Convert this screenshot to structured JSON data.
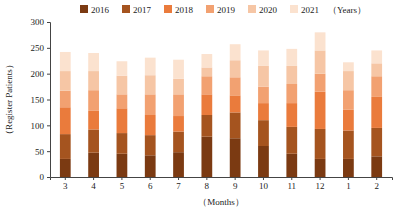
{
  "chart_data": {
    "type": "bar",
    "stacked": true,
    "y_label": "（Register Patients）",
    "x_label": "（Months）",
    "legend_title": "（Years）",
    "legend": "top",
    "grid": false,
    "categories": [
      "3",
      "4",
      "5",
      "6",
      "7",
      "8",
      "9",
      "10",
      "11",
      "12",
      "1",
      "2"
    ],
    "ylim": [
      0,
      300
    ],
    "yticks": [
      0,
      50,
      100,
      150,
      200,
      250,
      300
    ],
    "series": [
      {
        "name": "2016",
        "color": "#7b3a12",
        "values": [
          35,
          47,
          45,
          42,
          48,
          78,
          75,
          60,
          45,
          35,
          35,
          40
        ]
      },
      {
        "name": "2017",
        "color": "#a5541f",
        "values": [
          48,
          45,
          40,
          39,
          40,
          42,
          50,
          50,
          52,
          58,
          55,
          55
        ]
      },
      {
        "name": "2018",
        "color": "#ea7b3c",
        "values": [
          52,
          36,
          48,
          39,
          30,
          40,
          33,
          33,
          46,
          72,
          40,
          60
        ]
      },
      {
        "name": "2019",
        "color": "#f2a171",
        "values": [
          32,
          40,
          27,
          40,
          42,
          35,
          35,
          32,
          37,
          35,
          38,
          40
        ]
      },
      {
        "name": "2020",
        "color": "#f6c6a5",
        "values": [
          38,
          37,
          36,
          37,
          30,
          17,
          33,
          40,
          35,
          45,
          37,
          25
        ]
      },
      {
        "name": "2021",
        "color": "#fbe2cf",
        "values": [
          37,
          35,
          28,
          34,
          37,
          26,
          31,
          30,
          33,
          35,
          17,
          25
        ]
      }
    ]
  }
}
